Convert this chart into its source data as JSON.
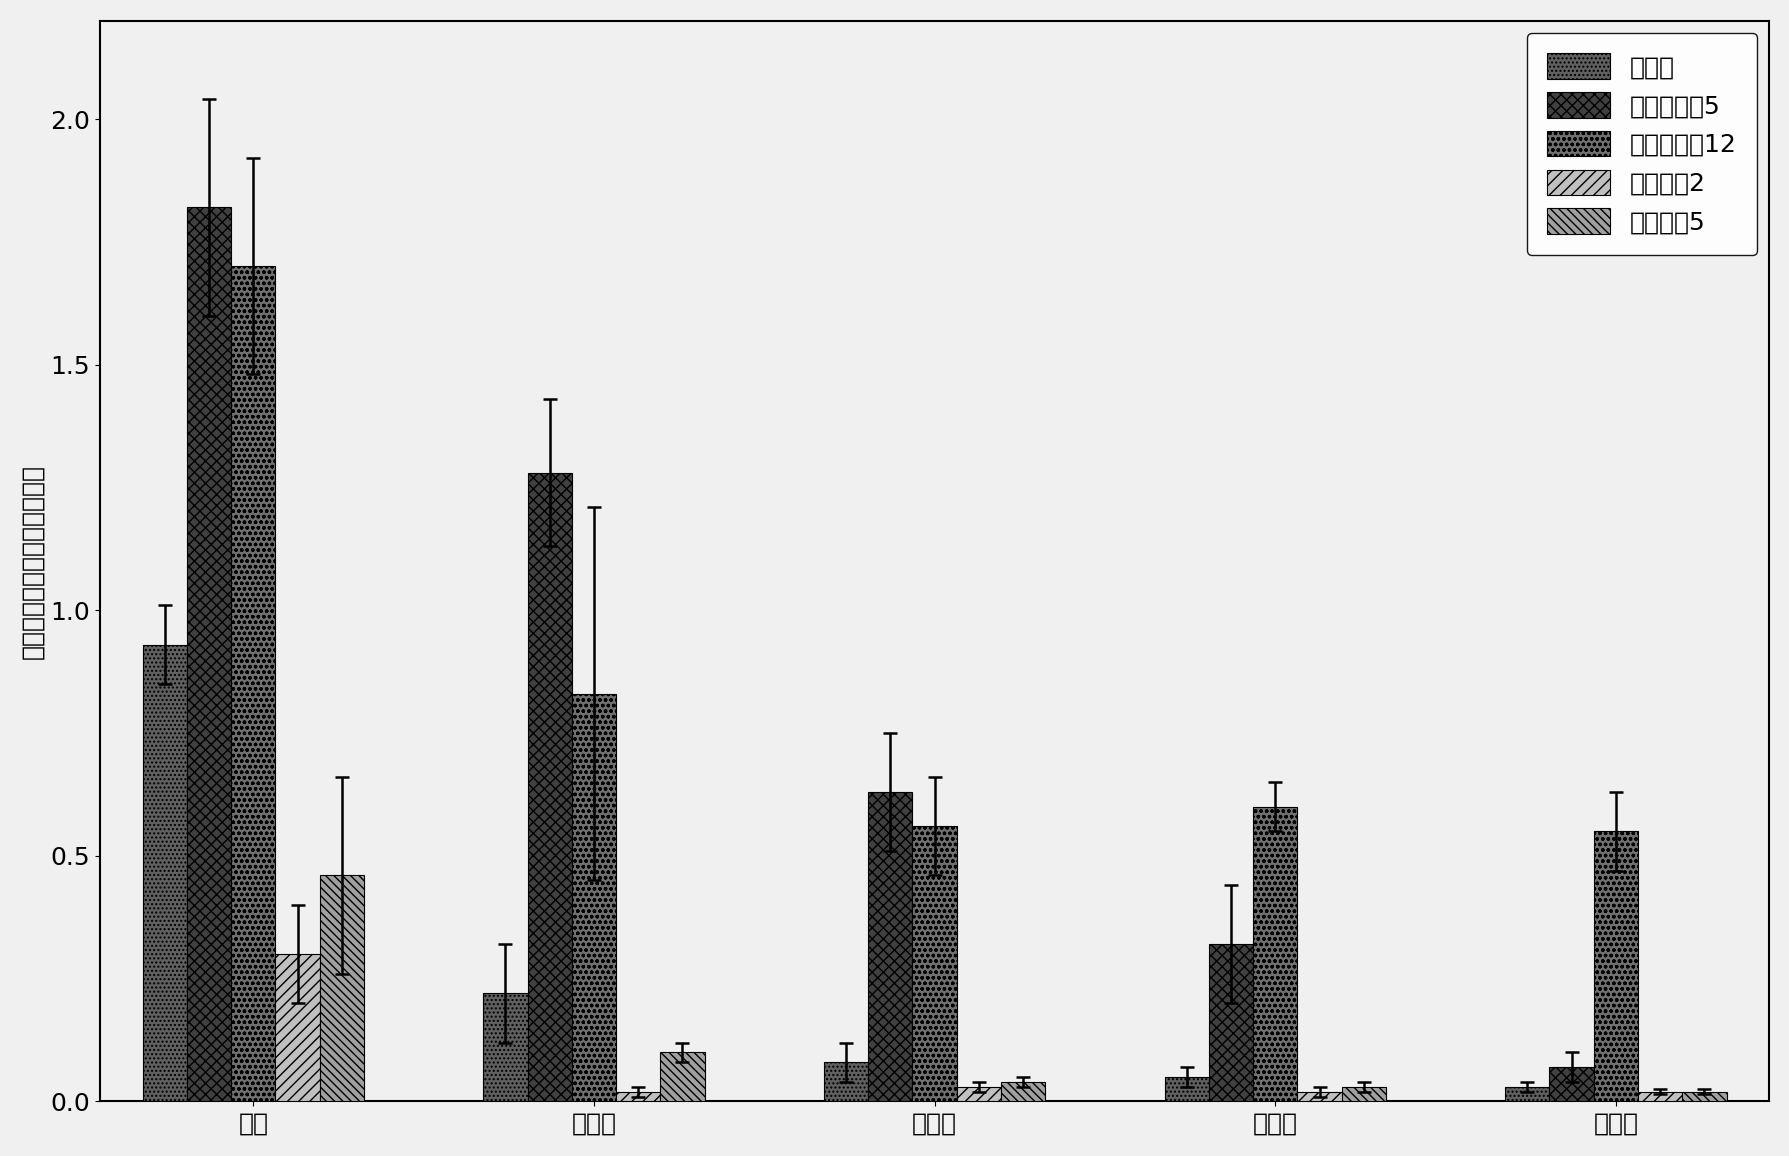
{
  "categories": [
    "劍叶",
    "第二叶",
    "第三叶",
    "第四叶",
    "第五叶"
  ],
  "series": [
    {
      "label": "野生型",
      "values": [
        0.93,
        0.22,
        0.08,
        0.05,
        0.03
      ],
      "errors": [
        0.08,
        0.1,
        0.04,
        0.02,
        0.01
      ],
      "hatch": "....",
      "facecolor": "#606060",
      "edgecolor": "#000000"
    },
    {
      "label": "过表达株系5",
      "values": [
        1.82,
        1.28,
        0.63,
        0.32,
        0.07
      ],
      "errors": [
        0.22,
        0.15,
        0.12,
        0.12,
        0.03
      ],
      "hatch": "xxx",
      "facecolor": "#404040",
      "edgecolor": "#000000"
    },
    {
      "label": "过表达株系12",
      "values": [
        1.7,
        0.83,
        0.56,
        0.6,
        0.55
      ],
      "errors": [
        0.22,
        0.38,
        0.1,
        0.05,
        0.08
      ],
      "hatch": "ooo",
      "facecolor": "#707070",
      "edgecolor": "#000000"
    },
    {
      "label": "干溉株系2",
      "values": [
        0.3,
        0.02,
        0.03,
        0.02,
        0.02
      ],
      "errors": [
        0.1,
        0.01,
        0.01,
        0.01,
        0.005
      ],
      "hatch": "///",
      "facecolor": "#c0c0c0",
      "edgecolor": "#000000"
    },
    {
      "label": "干溉株系5",
      "values": [
        0.46,
        0.1,
        0.04,
        0.03,
        0.02
      ],
      "errors": [
        0.2,
        0.02,
        0.01,
        0.01,
        0.005
      ],
      "hatch": "\\\\\\\\",
      "facecolor": "#a0a0a0",
      "edgecolor": "#000000"
    }
  ],
  "ylabel": "叶绿素含量（毫克／克鲜重）",
  "ylim": [
    0.0,
    2.2
  ],
  "yticks": [
    0.0,
    0.5,
    1.0,
    1.5,
    2.0
  ],
  "bar_width": 0.13,
  "background_color": "#f0f0f0",
  "legend_fontsize": 18,
  "tick_fontsize": 18,
  "ylabel_fontsize": 18
}
